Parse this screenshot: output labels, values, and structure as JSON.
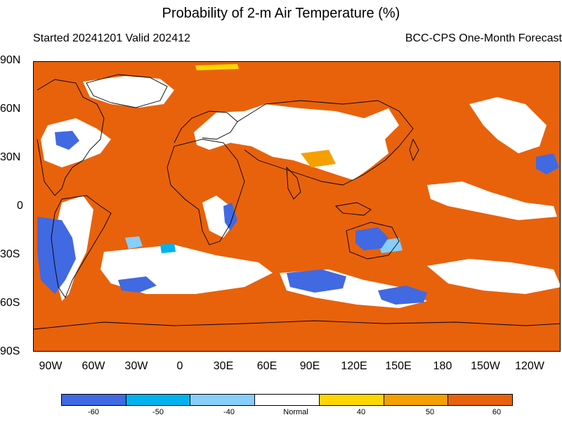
{
  "title": "Probability of 2-m Air Temperature (%)",
  "subtitle_left": "Started 20241201  Valid 202412",
  "subtitle_right": "BCC-CPS One-Month Forecast",
  "lat_labels": [
    "90N",
    "60N",
    "30N",
    "0",
    "30S",
    "60S",
    "90S"
  ],
  "lon_labels": [
    "90W",
    "60W",
    "30W",
    "0",
    "30E",
    "60E",
    "90E",
    "120E",
    "150E",
    "180",
    "150W",
    "120W"
  ],
  "colorbar": {
    "colors": [
      "#4169e1",
      "#00b2ee",
      "#87cefa",
      "#ffffff",
      "#ffd700",
      "#f5a000",
      "#e8620c"
    ],
    "labels": [
      "-60",
      "-50",
      "-40",
      "Normal",
      "40",
      "50",
      "60"
    ]
  },
  "category_colors": {
    "cold_60": "#4169e1",
    "cold_50": "#00b2ee",
    "cold_40": "#87cefa",
    "normal": "#ffffff",
    "warm_40": "#ffd700",
    "warm_50": "#f5a000",
    "warm_60": "#e8620c",
    "coastline": "#000000"
  }
}
